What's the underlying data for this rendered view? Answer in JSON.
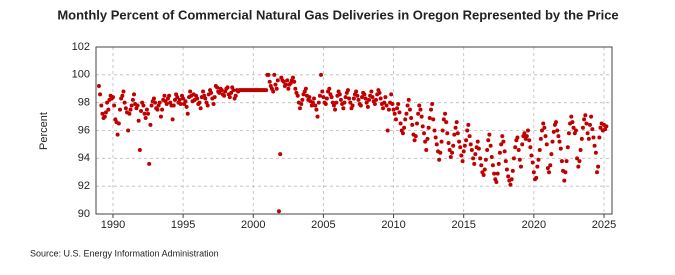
{
  "chart_data": {
    "type": "scatter",
    "title": "Monthly Percent of Commercial Natural Gas Deliveries in Oregon Represented by the Price",
    "y_label": "Percent",
    "source": "Source: U.S. Energy Information Administration",
    "color": "#c00000",
    "grid": true,
    "xlim": [
      1988.79,
      2025.57
    ],
    "ylim": [
      90,
      102
    ],
    "xticks": [
      1990,
      1995,
      2000,
      2005,
      2010,
      2015,
      2020,
      2025
    ],
    "yticks": [
      90,
      92,
      94,
      96,
      98,
      100,
      102
    ],
    "x": [
      1989.0,
      1989.08,
      1989.17,
      1989.25,
      1989.33,
      1989.42,
      1989.5,
      1989.58,
      1989.67,
      1989.75,
      1989.83,
      1989.92,
      1990.0,
      1990.08,
      1990.17,
      1990.25,
      1990.33,
      1990.42,
      1990.5,
      1990.58,
      1990.67,
      1990.75,
      1990.83,
      1990.92,
      1991.0,
      1991.08,
      1991.17,
      1991.25,
      1991.33,
      1991.42,
      1991.5,
      1991.58,
      1991.67,
      1991.75,
      1991.83,
      1991.92,
      1992.0,
      1992.08,
      1992.17,
      1992.25,
      1992.33,
      1992.42,
      1992.5,
      1992.58,
      1992.67,
      1992.75,
      1992.83,
      1992.92,
      1993.0,
      1993.08,
      1993.17,
      1993.25,
      1993.33,
      1993.42,
      1993.5,
      1993.58,
      1993.67,
      1993.75,
      1993.83,
      1993.92,
      1994.0,
      1994.08,
      1994.17,
      1994.25,
      1994.33,
      1994.42,
      1994.5,
      1994.58,
      1994.67,
      1994.75,
      1994.83,
      1994.92,
      1995.0,
      1995.08,
      1995.17,
      1995.25,
      1995.33,
      1995.42,
      1995.5,
      1995.58,
      1995.67,
      1995.75,
      1995.83,
      1995.92,
      1996.0,
      1996.08,
      1996.17,
      1996.25,
      1996.33,
      1996.42,
      1996.5,
      1996.58,
      1996.67,
      1996.75,
      1996.83,
      1996.92,
      1997.0,
      1997.08,
      1997.17,
      1997.25,
      1997.33,
      1997.42,
      1997.5,
      1997.58,
      1997.67,
      1997.75,
      1997.83,
      1997.92,
      1998.0,
      1998.08,
      1998.17,
      1998.25,
      1998.33,
      1998.42,
      1998.5,
      1998.58,
      1998.67,
      1998.75,
      1998.83,
      1998.92,
      1999.0,
      1999.08,
      1999.17,
      1999.25,
      1999.33,
      1999.42,
      1999.5,
      1999.58,
      1999.67,
      1999.75,
      1999.83,
      1999.92,
      2000.0,
      2000.08,
      2000.17,
      2000.25,
      2000.33,
      2000.42,
      2000.5,
      2000.58,
      2000.67,
      2000.75,
      2000.83,
      2000.92,
      2001.0,
      2001.08,
      2001.17,
      2001.25,
      2001.33,
      2001.42,
      2001.5,
      2001.58,
      2001.67,
      2001.75,
      2001.83,
      2001.92,
      2002.0,
      2002.08,
      2002.17,
      2002.25,
      2002.33,
      2002.42,
      2002.5,
      2002.58,
      2002.67,
      2002.75,
      2002.83,
      2002.92,
      2003.0,
      2003.08,
      2003.17,
      2003.25,
      2003.33,
      2003.42,
      2003.5,
      2003.58,
      2003.67,
      2003.75,
      2003.83,
      2003.92,
      2004.0,
      2004.08,
      2004.17,
      2004.25,
      2004.33,
      2004.42,
      2004.5,
      2004.58,
      2004.67,
      2004.75,
      2004.83,
      2004.92,
      2005.0,
      2005.08,
      2005.17,
      2005.25,
      2005.33,
      2005.42,
      2005.5,
      2005.58,
      2005.67,
      2005.75,
      2005.83,
      2005.92,
      2006.0,
      2006.08,
      2006.17,
      2006.25,
      2006.33,
      2006.42,
      2006.5,
      2006.58,
      2006.67,
      2006.75,
      2006.83,
      2006.92,
      2007.0,
      2007.08,
      2007.17,
      2007.25,
      2007.33,
      2007.42,
      2007.5,
      2007.58,
      2007.67,
      2007.75,
      2007.83,
      2007.92,
      2008.0,
      2008.08,
      2008.17,
      2008.25,
      2008.33,
      2008.42,
      2008.5,
      2008.58,
      2008.67,
      2008.75,
      2008.83,
      2008.92,
      2009.0,
      2009.08,
      2009.17,
      2009.25,
      2009.33,
      2009.42,
      2009.5,
      2009.58,
      2009.67,
      2009.75,
      2009.83,
      2009.92,
      2010.0,
      2010.08,
      2010.17,
      2010.25,
      2010.33,
      2010.42,
      2010.5,
      2010.58,
      2010.67,
      2010.75,
      2010.83,
      2010.92,
      2011.0,
      2011.08,
      2011.17,
      2011.25,
      2011.33,
      2011.42,
      2011.5,
      2011.58,
      2011.67,
      2011.75,
      2011.83,
      2011.92,
      2012.0,
      2012.08,
      2012.17,
      2012.25,
      2012.33,
      2012.42,
      2012.5,
      2012.58,
      2012.67,
      2012.75,
      2012.83,
      2012.92,
      2013.0,
      2013.08,
      2013.17,
      2013.25,
      2013.33,
      2013.42,
      2013.5,
      2013.58,
      2013.67,
      2013.75,
      2013.83,
      2013.92,
      2014.0,
      2014.08,
      2014.17,
      2014.25,
      2014.33,
      2014.42,
      2014.5,
      2014.58,
      2014.67,
      2014.75,
      2014.83,
      2014.92,
      2015.0,
      2015.08,
      2015.17,
      2015.25,
      2015.33,
      2015.42,
      2015.5,
      2015.58,
      2015.67,
      2015.75,
      2015.83,
      2015.92,
      2016.0,
      2016.08,
      2016.17,
      2016.25,
      2016.33,
      2016.42,
      2016.5,
      2016.58,
      2016.67,
      2016.75,
      2016.83,
      2016.92,
      2017.0,
      2017.08,
      2017.17,
      2017.25,
      2017.33,
      2017.42,
      2017.5,
      2017.58,
      2017.67,
      2017.75,
      2017.83,
      2017.92,
      2018.0,
      2018.08,
      2018.17,
      2018.25,
      2018.33,
      2018.42,
      2018.5,
      2018.58,
      2018.67,
      2018.75,
      2018.83,
      2018.92,
      2019.0,
      2019.08,
      2019.17,
      2019.25,
      2019.33,
      2019.42,
      2019.5,
      2019.58,
      2019.67,
      2019.75,
      2019.83,
      2019.92,
      2020.0,
      2020.08,
      2020.17,
      2020.25,
      2020.33,
      2020.42,
      2020.5,
      2020.58,
      2020.67,
      2020.75,
      2020.83,
      2020.92,
      2021.0,
      2021.08,
      2021.17,
      2021.25,
      2021.33,
      2021.42,
      2021.5,
      2021.58,
      2021.67,
      2021.75,
      2021.83,
      2021.92,
      2022.0,
      2022.08,
      2022.17,
      2022.25,
      2022.33,
      2022.42,
      2022.5,
      2022.58,
      2022.67,
      2022.75,
      2022.83,
      2022.92,
      2023.0,
      2023.08,
      2023.17,
      2023.25,
      2023.33,
      2023.42,
      2023.5,
      2023.58,
      2023.67,
      2023.75,
      2023.83,
      2023.92,
      2024.0,
      2024.08,
      2024.17,
      2024.25,
      2024.33,
      2024.42,
      2024.5,
      2024.58,
      2024.67,
      2024.75,
      2024.83,
      2024.92,
      2025.0,
      2025.08,
      2025.17
    ],
    "values": [
      99.2,
      98.6,
      97.8,
      97.2,
      96.9,
      97.0,
      97.3,
      98.0,
      97.5,
      98.2,
      98.5,
      98.3,
      98.4,
      97.8,
      96.8,
      96.6,
      95.7,
      96.5,
      97.5,
      98.3,
      98.5,
      98.8,
      98.0,
      97.6,
      97.3,
      96.0,
      97.2,
      97.5,
      97.8,
      98.2,
      98.6,
      97.9,
      97.6,
      97.8,
      96.7,
      94.6,
      97.4,
      98.0,
      97.8,
      97.2,
      96.9,
      97.5,
      97.2,
      93.6,
      96.4,
      97.8,
      98.1,
      98.3,
      98.0,
      97.6,
      97.5,
      97.8,
      98.0,
      97.0,
      97.5,
      98.2,
      98.5,
      98.1,
      97.9,
      98.3,
      98.5,
      98.0,
      97.8,
      96.8,
      97.8,
      98.2,
      98.6,
      98.4,
      98.0,
      98.2,
      97.9,
      98.5,
      98.3,
      97.9,
      98.1,
      97.7,
      97.2,
      98.4,
      98.8,
      98.5,
      98.1,
      98.6,
      98.2,
      98.5,
      98.3,
      97.9,
      98.0,
      97.6,
      98.4,
      98.8,
      98.5,
      98.3,
      98.0,
      97.8,
      98.6,
      98.9,
      98.7,
      98.3,
      97.9,
      98.4,
      99.2,
      99.1,
      98.8,
      98.7,
      99.0,
      98.9,
      98.6,
      98.5,
      98.8,
      99.0,
      99.1,
      98.6,
      98.4,
      98.7,
      99.1,
      98.9,
      98.3,
      98.5,
      98.9,
      98.8,
      98.9,
      98.9,
      98.9,
      98.9,
      98.9,
      98.9,
      98.9,
      98.9,
      98.9,
      98.9,
      98.9,
      98.9,
      98.9,
      98.9,
      98.9,
      98.9,
      98.9,
      98.9,
      98.9,
      98.9,
      98.9,
      98.9,
      98.9,
      98.9,
      100.0,
      100.0,
      99.5,
      99.2,
      99.0,
      98.8,
      100.0,
      99.3,
      99.0,
      99.6,
      90.2,
      94.3,
      99.8,
      99.6,
      99.5,
      99.2,
      99.3,
      99.6,
      99.0,
      99.3,
      99.4,
      99.6,
      99.8,
      99.5,
      99.0,
      98.7,
      98.5,
      98.0,
      97.6,
      97.9,
      98.2,
      98.6,
      98.8,
      99.0,
      98.5,
      98.2,
      98.4,
      98.1,
      97.8,
      98.0,
      98.3,
      97.8,
      97.5,
      97.0,
      98.0,
      98.5,
      100.0,
      98.8,
      98.4,
      98.0,
      97.9,
      98.3,
      98.8,
      99.0,
      98.6,
      98.4,
      98.0,
      97.8,
      97.5,
      98.0,
      98.5,
      98.8,
      98.6,
      98.2,
      97.9,
      97.6,
      98.0,
      98.4,
      98.7,
      98.9,
      98.3,
      98.0,
      97.6,
      97.8,
      98.3,
      98.6,
      98.8,
      98.5,
      98.2,
      97.9,
      97.8,
      98.4,
      98.7,
      98.6,
      98.3,
      98.0,
      97.7,
      98.2,
      98.5,
      98.8,
      98.4,
      98.1,
      97.9,
      98.2,
      98.6,
      98.9,
      98.7,
      98.3,
      97.9,
      97.6,
      98.0,
      98.4,
      97.8,
      96.0,
      97.5,
      98.0,
      98.6,
      97.9,
      97.5,
      97.2,
      96.8,
      97.6,
      97.9,
      97.3,
      96.5,
      96.0,
      95.8,
      96.2,
      96.8,
      97.2,
      97.8,
      98.2,
      97.5,
      96.9,
      96.4,
      95.7,
      95.3,
      95.6,
      96.5,
      97.2,
      97.8,
      97.5,
      97.0,
      96.3,
      95.8,
      95.2,
      94.6,
      95.4,
      96.2,
      96.9,
      97.5,
      97.9,
      96.8,
      96.0,
      95.5,
      95.0,
      94.5,
      93.9,
      94.4,
      95.2,
      96.0,
      96.8,
      97.2,
      96.6,
      95.8,
      95.1,
      94.6,
      94.1,
      94.4,
      94.9,
      95.7,
      96.2,
      96.6,
      95.8,
      95.2,
      94.8,
      94.2,
      93.8,
      94.5,
      94.9,
      95.3,
      96.0,
      96.4,
      95.6,
      95.0,
      94.6,
      94.0,
      93.6,
      94.3,
      94.8,
      95.2,
      94.7,
      94.0,
      93.5,
      93.0,
      92.8,
      93.2,
      93.9,
      94.6,
      95.3,
      95.7,
      94.9,
      94.1,
      93.5,
      92.9,
      92.5,
      92.3,
      92.9,
      93.6,
      94.4,
      95.0,
      95.6,
      95.2,
      94.5,
      93.8,
      93.2,
      92.7,
      92.4,
      92.1,
      92.5,
      93.1,
      94.0,
      94.8,
      95.3,
      95.5,
      94.6,
      93.9,
      93.4,
      95.0,
      95.6,
      95.8,
      95.4,
      95.6,
      96.0,
      95.3,
      94.8,
      94.2,
      93.7,
      93.0,
      92.5,
      92.6,
      93.4,
      93.9,
      94.6,
      95.4,
      96.0,
      96.5,
      96.2,
      95.6,
      95.0,
      93.3,
      93.0,
      93.5,
      94.3,
      95.2,
      95.9,
      96.4,
      96.6,
      96.0,
      95.6,
      95.2,
      94.7,
      93.8,
      93.1,
      92.4,
      93.0,
      93.8,
      94.8,
      95.8,
      96.5,
      97.0,
      96.6,
      96.2,
      95.8,
      96.0,
      94.0,
      93.4,
      93.8,
      94.6,
      95.4,
      96.2,
      96.8,
      97.1,
      96.5,
      95.8,
      95.4,
      96.4,
      97.0,
      96.1,
      95.5,
      94.9,
      94.4,
      93.0,
      93.4,
      95.5,
      96.2,
      96.5,
      96.0,
      96.4,
      96.1,
      96.3
    ]
  }
}
